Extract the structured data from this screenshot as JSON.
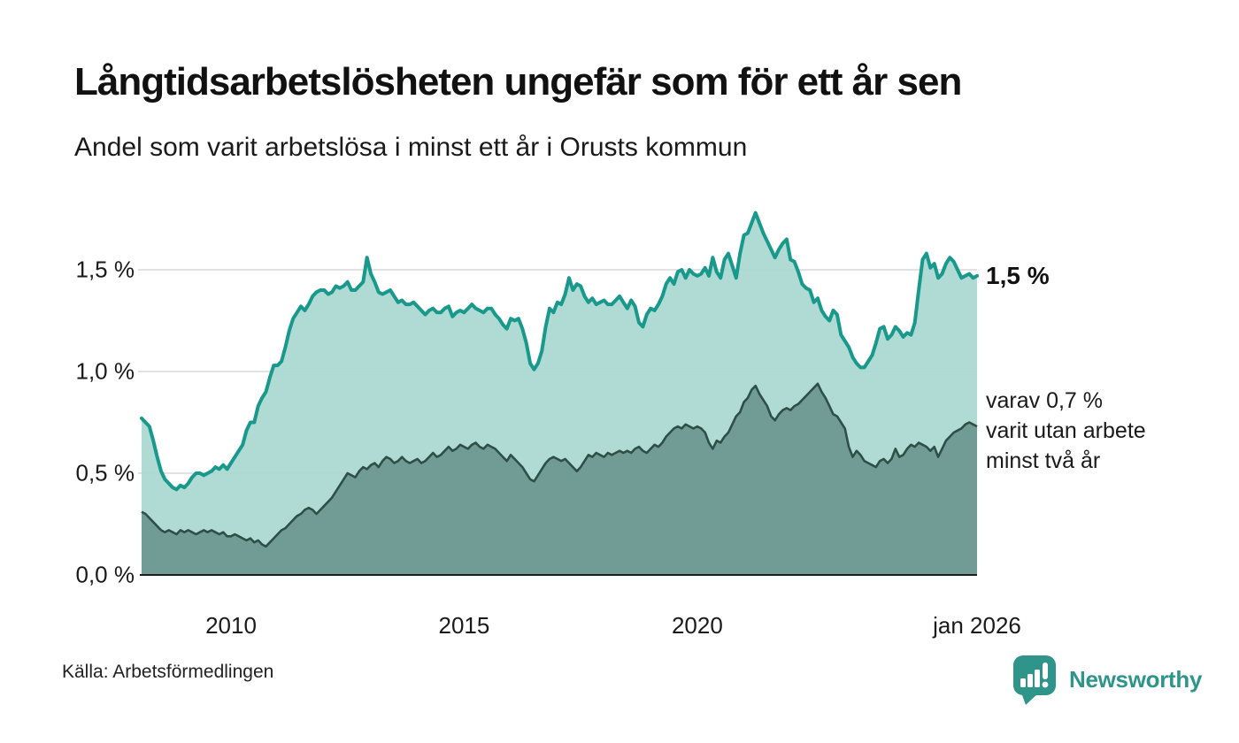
{
  "header": {
    "title": "Långtidsarbetslösheten ungefär som för ett år sen",
    "subtitle": "Andel som varit arbetslösa i minst ett år i Orusts kommun"
  },
  "footer": {
    "source": "Källa: Arbetsförmedlingen",
    "brand": "Newsworthy"
  },
  "colors": {
    "line_total": "#18998b",
    "fill_total": "rgba(168,216,208,0.92)",
    "line_two_years": "#2e4f48",
    "fill_two_years": "rgba(109,152,146,0.94)",
    "gridline": "#d8d8d8",
    "baseline": "#1c1c1c",
    "brand_teal": "#2f958a"
  },
  "chart_data": {
    "type": "area",
    "title": "Långtidsarbetslösheten ungefär som för ett år sen",
    "subtitle": "Andel som varit arbetslösa i minst ett år i Orusts kommun",
    "x_unit": "month",
    "x_range": "feb 2008 – jan 2026",
    "grid": true,
    "ylim": [
      0,
      1.85
    ],
    "y_axis_ticks": [
      {
        "label": "1,5 %",
        "value": 1.5
      },
      {
        "label": "1,0 %",
        "value": 1.0
      },
      {
        "label": "0,5 %",
        "value": 0.5
      },
      {
        "label": "0,0 %",
        "value": 0.0
      }
    ],
    "x_axis_ticks": [
      {
        "label": "2010",
        "month_index": 23
      },
      {
        "label": "2015",
        "month_index": 83
      },
      {
        "label": "2020",
        "month_index": 143
      },
      {
        "label": "jan 2026",
        "month_index": 215
      }
    ],
    "series": [
      {
        "name": "Andel som varit arbetslösa i minst ett år",
        "end_label": "1,5 %",
        "end_value": 1.5,
        "values": [
          0.77,
          0.75,
          0.73,
          0.66,
          0.58,
          0.51,
          0.47,
          0.45,
          0.43,
          0.42,
          0.44,
          0.43,
          0.45,
          0.48,
          0.5,
          0.5,
          0.49,
          0.5,
          0.51,
          0.53,
          0.52,
          0.54,
          0.52,
          0.55,
          0.58,
          0.61,
          0.64,
          0.71,
          0.75,
          0.75,
          0.83,
          0.87,
          0.9,
          0.97,
          1.03,
          1.03,
          1.05,
          1.12,
          1.2,
          1.26,
          1.29,
          1.32,
          1.3,
          1.33,
          1.37,
          1.39,
          1.4,
          1.4,
          1.38,
          1.39,
          1.42,
          1.41,
          1.42,
          1.44,
          1.4,
          1.4,
          1.42,
          1.44,
          1.56,
          1.48,
          1.44,
          1.39,
          1.38,
          1.39,
          1.4,
          1.37,
          1.34,
          1.35,
          1.33,
          1.33,
          1.34,
          1.32,
          1.3,
          1.28,
          1.3,
          1.31,
          1.29,
          1.29,
          1.31,
          1.32,
          1.27,
          1.29,
          1.3,
          1.29,
          1.31,
          1.33,
          1.31,
          1.3,
          1.29,
          1.31,
          1.31,
          1.28,
          1.26,
          1.23,
          1.21,
          1.26,
          1.25,
          1.26,
          1.21,
          1.14,
          1.04,
          1.01,
          1.04,
          1.1,
          1.22,
          1.31,
          1.29,
          1.34,
          1.33,
          1.38,
          1.46,
          1.4,
          1.43,
          1.42,
          1.37,
          1.34,
          1.36,
          1.33,
          1.34,
          1.35,
          1.33,
          1.33,
          1.35,
          1.37,
          1.34,
          1.31,
          1.35,
          1.32,
          1.24,
          1.22,
          1.28,
          1.31,
          1.3,
          1.33,
          1.37,
          1.43,
          1.46,
          1.43,
          1.49,
          1.5,
          1.46,
          1.5,
          1.48,
          1.47,
          1.48,
          1.51,
          1.47,
          1.56,
          1.49,
          1.46,
          1.55,
          1.58,
          1.52,
          1.46,
          1.58,
          1.67,
          1.68,
          1.73,
          1.78,
          1.73,
          1.68,
          1.64,
          1.6,
          1.56,
          1.6,
          1.63,
          1.65,
          1.55,
          1.54,
          1.49,
          1.43,
          1.41,
          1.4,
          1.34,
          1.36,
          1.3,
          1.27,
          1.25,
          1.3,
          1.28,
          1.18,
          1.15,
          1.12,
          1.07,
          1.04,
          1.02,
          1.02,
          1.05,
          1.08,
          1.14,
          1.21,
          1.22,
          1.16,
          1.18,
          1.22,
          1.2,
          1.17,
          1.19,
          1.18,
          1.24,
          1.4,
          1.55,
          1.58,
          1.51,
          1.53,
          1.46,
          1.48,
          1.53,
          1.56,
          1.54,
          1.5,
          1.46,
          1.47,
          1.48,
          1.46,
          1.47
        ]
      },
      {
        "name": "varav varit utan arbete minst två år",
        "annotation_lines": [
          "varav 0,7 %",
          "varit utan arbete",
          "minst två år"
        ],
        "end_value": 0.7,
        "values": [
          0.31,
          0.3,
          0.28,
          0.26,
          0.24,
          0.22,
          0.21,
          0.22,
          0.21,
          0.2,
          0.22,
          0.21,
          0.22,
          0.21,
          0.2,
          0.21,
          0.22,
          0.21,
          0.22,
          0.21,
          0.2,
          0.21,
          0.19,
          0.19,
          0.2,
          0.19,
          0.18,
          0.17,
          0.18,
          0.16,
          0.17,
          0.15,
          0.14,
          0.16,
          0.18,
          0.2,
          0.22,
          0.23,
          0.25,
          0.27,
          0.29,
          0.3,
          0.32,
          0.33,
          0.32,
          0.3,
          0.32,
          0.34,
          0.36,
          0.38,
          0.41,
          0.44,
          0.47,
          0.5,
          0.49,
          0.48,
          0.51,
          0.53,
          0.52,
          0.54,
          0.55,
          0.53,
          0.56,
          0.58,
          0.57,
          0.55,
          0.56,
          0.58,
          0.56,
          0.55,
          0.56,
          0.57,
          0.55,
          0.56,
          0.58,
          0.6,
          0.58,
          0.59,
          0.61,
          0.63,
          0.61,
          0.62,
          0.64,
          0.63,
          0.62,
          0.64,
          0.65,
          0.63,
          0.62,
          0.64,
          0.63,
          0.62,
          0.6,
          0.58,
          0.56,
          0.59,
          0.57,
          0.55,
          0.53,
          0.5,
          0.47,
          0.46,
          0.49,
          0.52,
          0.55,
          0.57,
          0.58,
          0.57,
          0.56,
          0.57,
          0.55,
          0.53,
          0.51,
          0.53,
          0.56,
          0.59,
          0.58,
          0.6,
          0.59,
          0.58,
          0.6,
          0.59,
          0.6,
          0.61,
          0.6,
          0.61,
          0.6,
          0.62,
          0.63,
          0.61,
          0.6,
          0.62,
          0.64,
          0.63,
          0.65,
          0.68,
          0.7,
          0.72,
          0.73,
          0.72,
          0.74,
          0.73,
          0.72,
          0.73,
          0.72,
          0.7,
          0.65,
          0.62,
          0.66,
          0.65,
          0.68,
          0.7,
          0.74,
          0.78,
          0.8,
          0.85,
          0.87,
          0.91,
          0.93,
          0.89,
          0.86,
          0.83,
          0.78,
          0.76,
          0.79,
          0.81,
          0.82,
          0.81,
          0.83,
          0.84,
          0.86,
          0.88,
          0.9,
          0.92,
          0.94,
          0.9,
          0.87,
          0.83,
          0.79,
          0.78,
          0.75,
          0.72,
          0.63,
          0.58,
          0.61,
          0.59,
          0.56,
          0.55,
          0.54,
          0.53,
          0.56,
          0.57,
          0.55,
          0.57,
          0.62,
          0.58,
          0.59,
          0.62,
          0.64,
          0.63,
          0.65,
          0.64,
          0.63,
          0.61,
          0.63,
          0.58,
          0.62,
          0.66,
          0.68,
          0.7,
          0.71,
          0.72,
          0.74,
          0.75,
          0.74,
          0.73
        ]
      }
    ]
  }
}
